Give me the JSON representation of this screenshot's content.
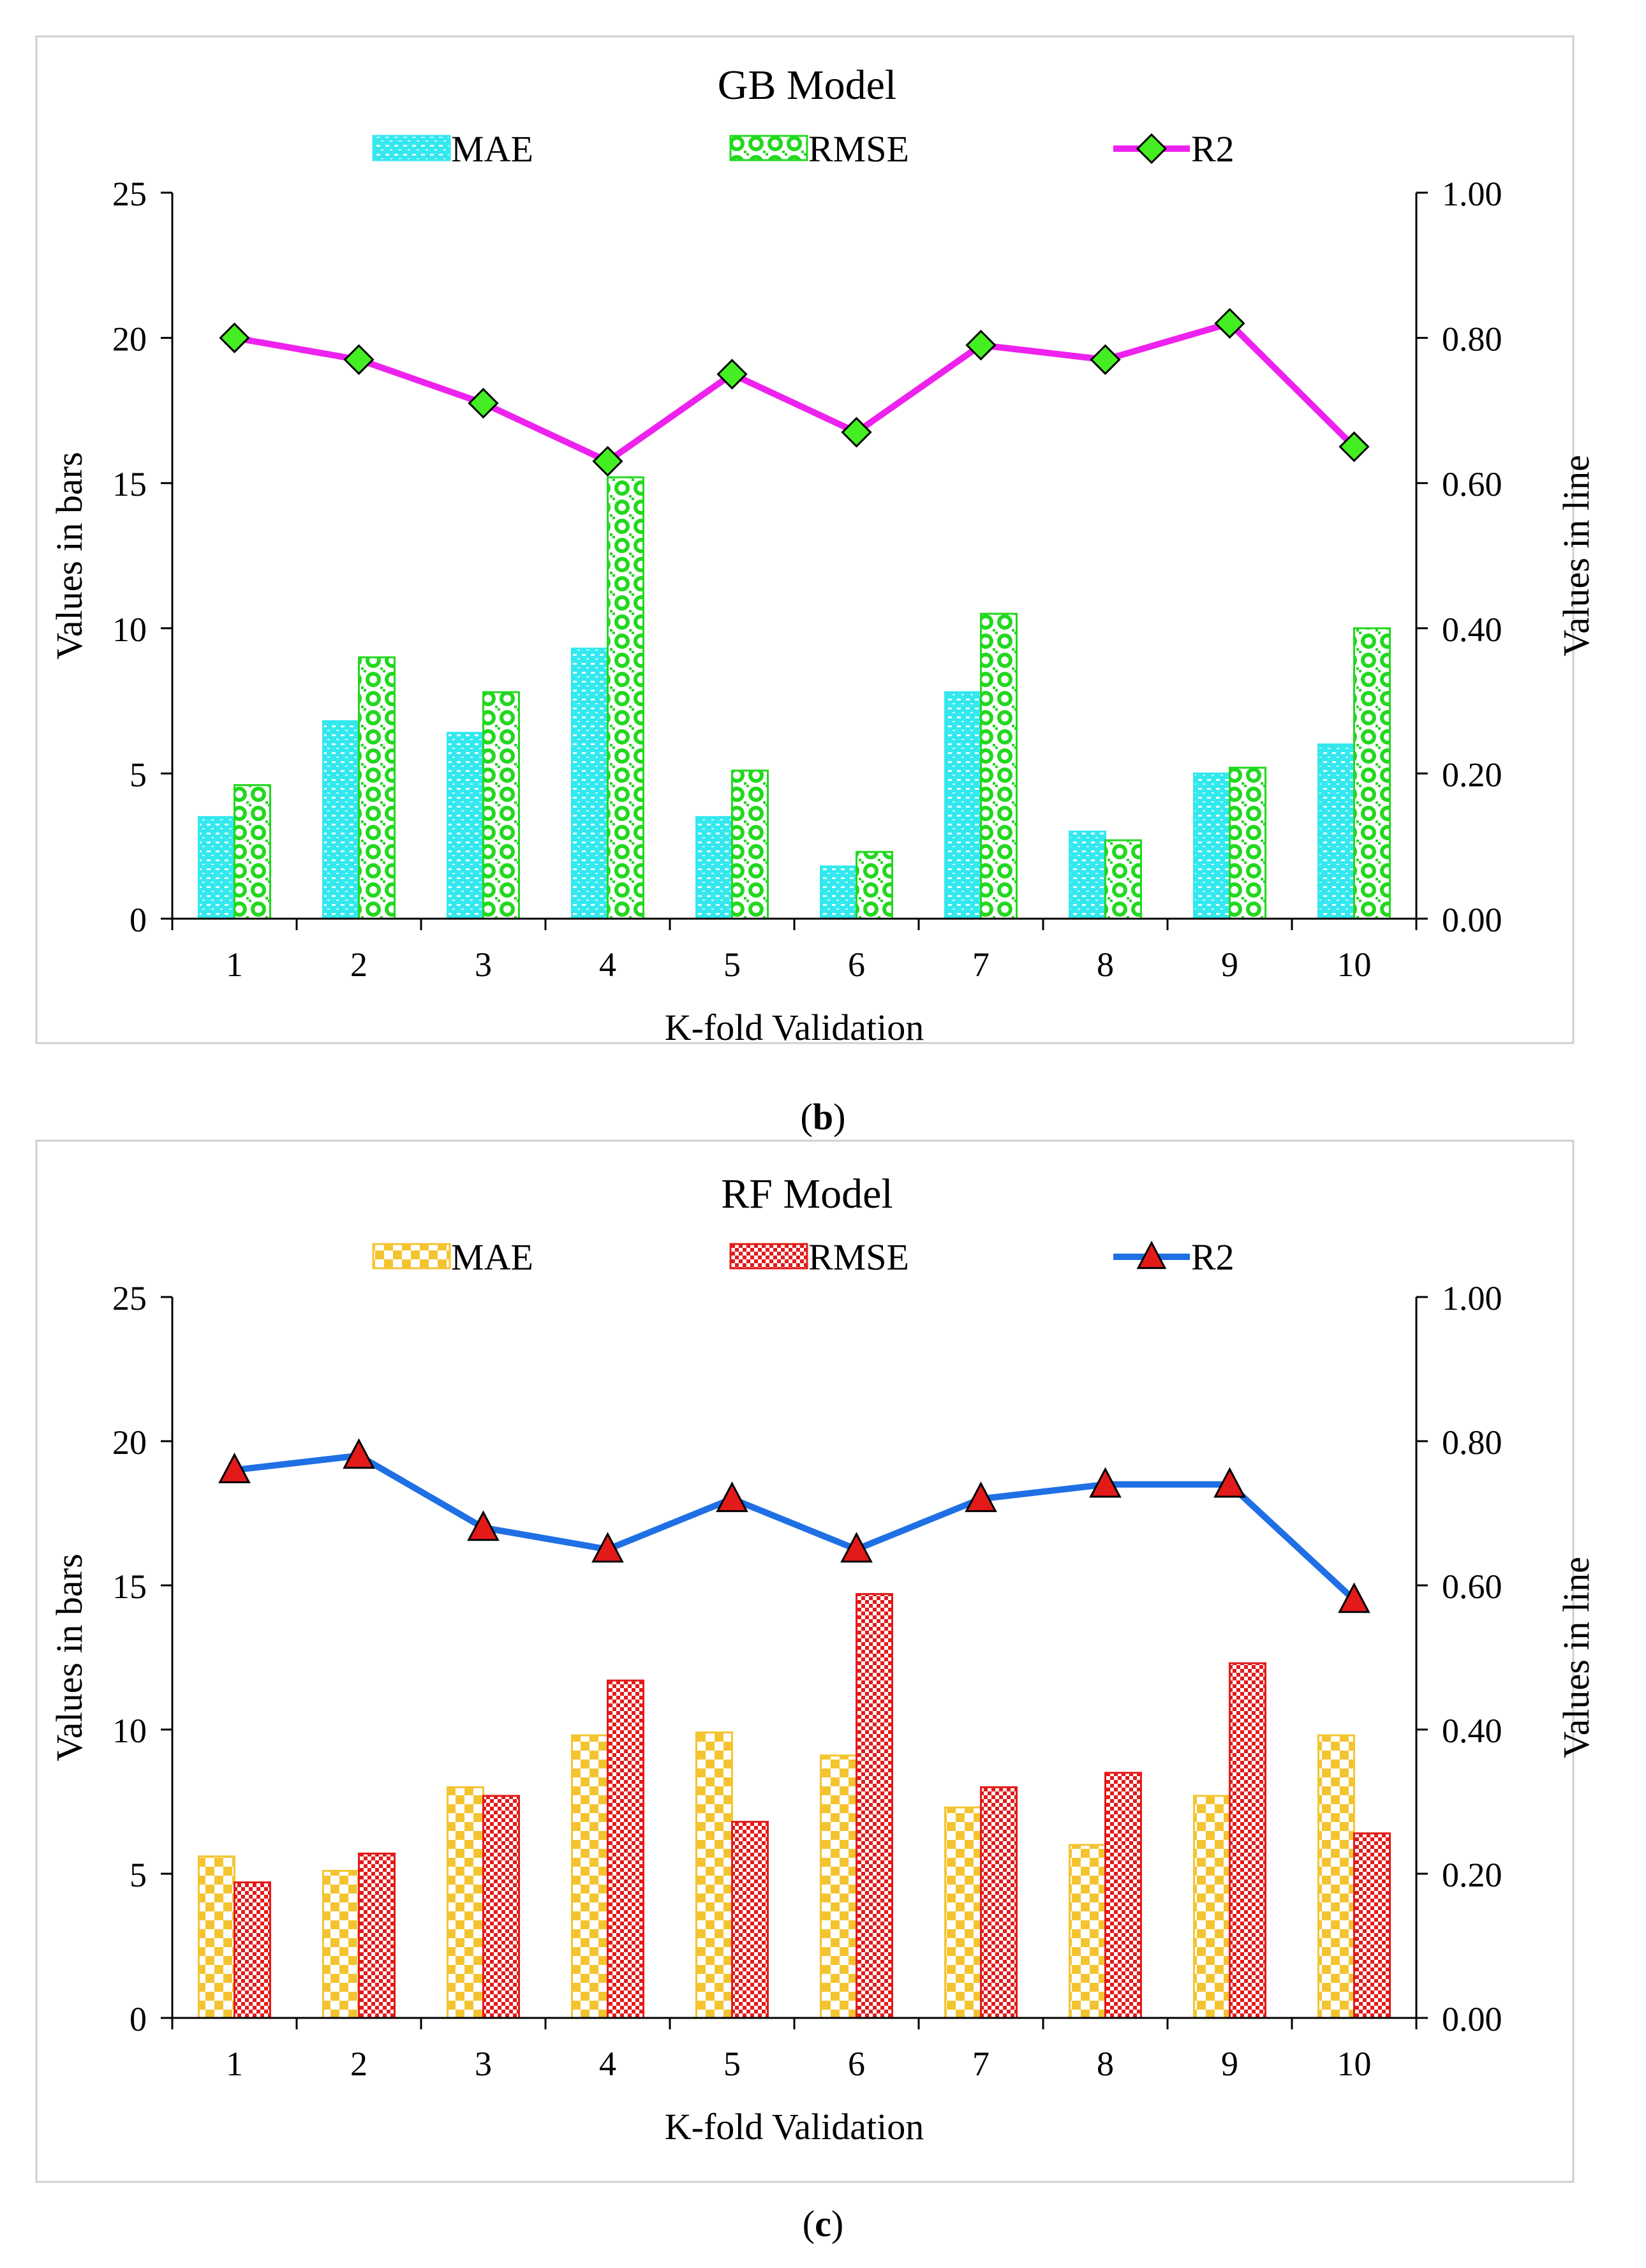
{
  "chart_data": [
    {
      "type": "bar",
      "panel_label": "b",
      "title": "GB Model",
      "xlabel": "K-fold Validation",
      "ylabel": "Values in bars",
      "y2label": "Values in line",
      "categories": [
        "1",
        "2",
        "3",
        "4",
        "5",
        "6",
        "7",
        "8",
        "9",
        "10"
      ],
      "ylim": [
        0,
        25
      ],
      "yticks": [
        "0",
        "5",
        "10",
        "15",
        "20",
        "25"
      ],
      "y2lim": [
        0,
        1
      ],
      "y2ticks": [
        "0.00",
        "0.20",
        "0.40",
        "0.60",
        "0.80",
        "1.00"
      ],
      "legend_position": "top",
      "series": [
        {
          "name": "MAE",
          "kind": "bar",
          "values": [
            3.5,
            6.8,
            6.4,
            9.3,
            3.5,
            1.8,
            7.8,
            3.0,
            5.0,
            6.0
          ],
          "color": "#33e8ee",
          "pattern": "dots"
        },
        {
          "name": "RMSE",
          "kind": "bar",
          "values": [
            4.6,
            9.0,
            7.8,
            15.2,
            5.1,
            2.3,
            10.5,
            2.7,
            5.2,
            10.0
          ],
          "color": "#22d81e",
          "pattern": "circles"
        },
        {
          "name": "R2",
          "kind": "line",
          "axis": "right",
          "values": [
            0.8,
            0.77,
            0.71,
            0.63,
            0.75,
            0.67,
            0.79,
            0.77,
            0.82,
            0.65
          ],
          "color": "#ee22ee",
          "marker": "diamond",
          "marker_color": "#44ee22"
        }
      ]
    },
    {
      "type": "bar",
      "panel_label": "c",
      "title": "RF Model",
      "xlabel": "K-fold Validation",
      "ylabel": "Values in bars",
      "y2label": "Values in line",
      "categories": [
        "1",
        "2",
        "3",
        "4",
        "5",
        "6",
        "7",
        "8",
        "9",
        "10"
      ],
      "ylim": [
        0,
        25
      ],
      "yticks": [
        "0",
        "5",
        "10",
        "15",
        "20",
        "25"
      ],
      "y2lim": [
        0,
        1
      ],
      "y2ticks": [
        "0.00",
        "0.20",
        "0.40",
        "0.60",
        "0.80",
        "1.00"
      ],
      "legend_position": "top",
      "series": [
        {
          "name": "MAE",
          "kind": "bar",
          "values": [
            5.6,
            5.1,
            8.0,
            9.8,
            9.9,
            9.1,
            7.3,
            6.0,
            7.7,
            9.8
          ],
          "color": "#f4c430",
          "pattern": "checker"
        },
        {
          "name": "RMSE",
          "kind": "bar",
          "values": [
            4.7,
            5.7,
            7.7,
            11.7,
            6.8,
            14.7,
            8.0,
            8.5,
            12.3,
            6.4
          ],
          "color": "#e31a1a",
          "pattern": "finecheck"
        },
        {
          "name": "R2",
          "kind": "line",
          "axis": "right",
          "values": [
            0.76,
            0.78,
            0.68,
            0.65,
            0.72,
            0.65,
            0.72,
            0.74,
            0.74,
            0.58
          ],
          "color": "#1f6fe5",
          "marker": "triangle",
          "marker_color": "#e31a1a"
        }
      ]
    }
  ]
}
